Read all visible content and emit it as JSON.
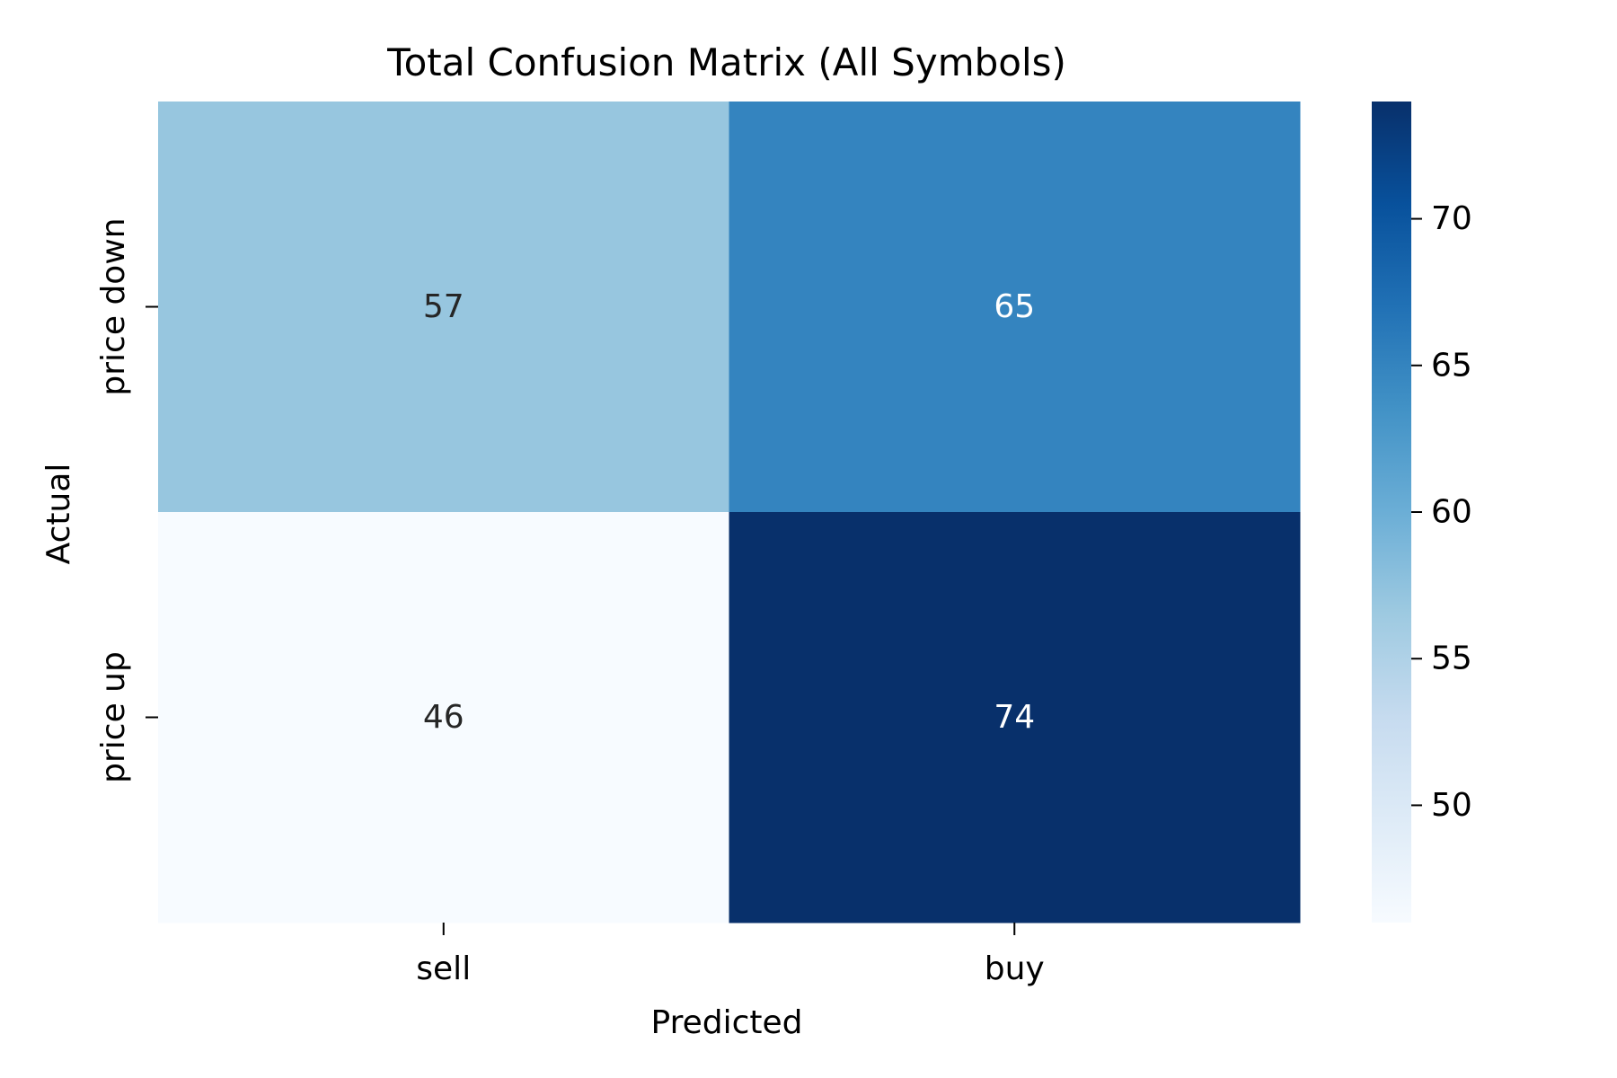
{
  "chart_data": {
    "type": "heatmap",
    "title": "Total Confusion Matrix (All Symbols)",
    "xlabel": "Predicted",
    "ylabel": "Actual",
    "x_categories": [
      "sell",
      "buy"
    ],
    "y_categories": [
      "price down",
      "price up"
    ],
    "values": [
      [
        57,
        65
      ],
      [
        46,
        74
      ]
    ],
    "colormap": "Blues",
    "colorbar": {
      "range": [
        46,
        74
      ],
      "ticks": [
        "50",
        "55",
        "60",
        "65",
        "70"
      ]
    },
    "annotation_colors": {
      "dark_text": "#262626",
      "light_text": "#ffffff"
    },
    "grid": false,
    "legend": "colorbar-right"
  }
}
